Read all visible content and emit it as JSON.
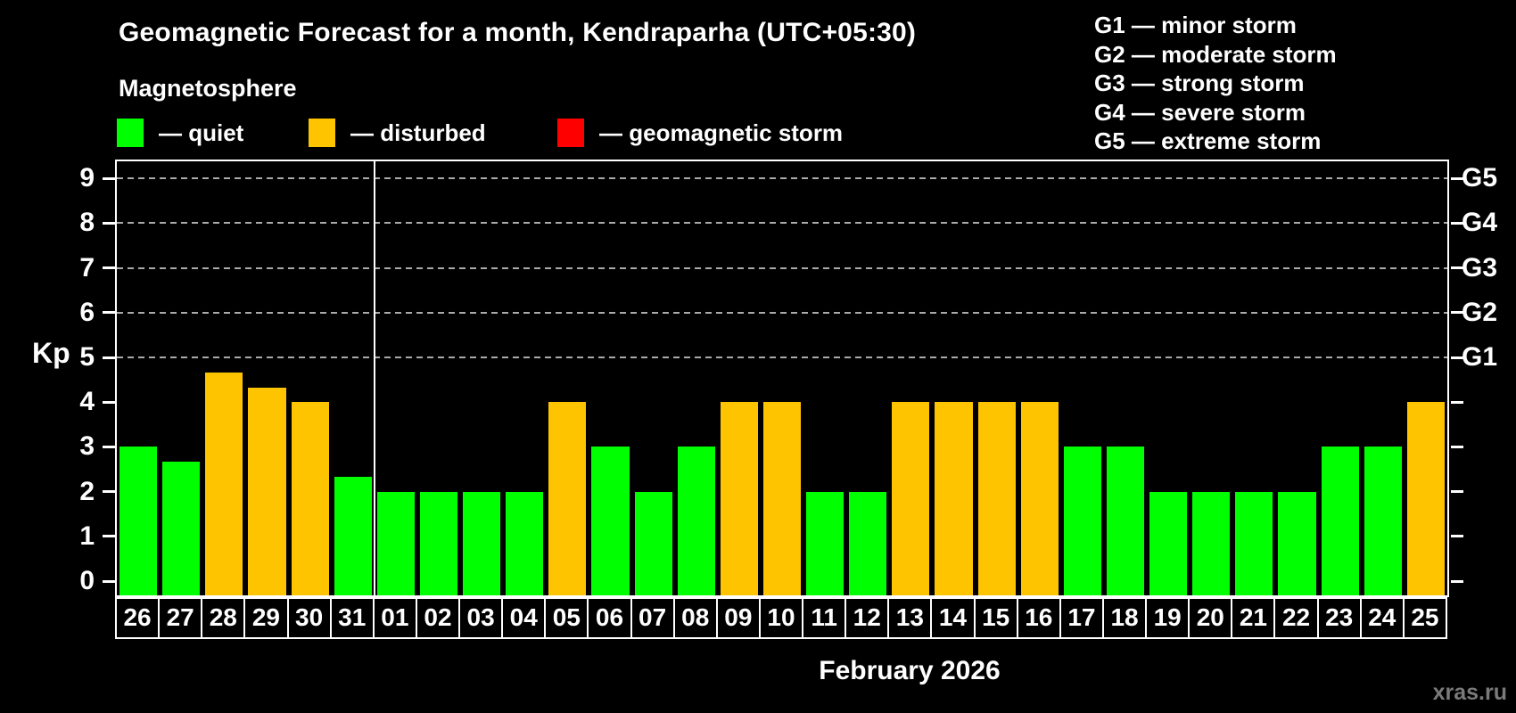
{
  "header": {
    "title": "Geomagnetic Forecast for a month, Kendraparha (UTC+05:30)",
    "subtitle": "Magnetosphere"
  },
  "legend": {
    "items": [
      {
        "name": "quiet",
        "color": "#00ff00",
        "label": "— quiet"
      },
      {
        "name": "disturbed",
        "color": "#ffc400",
        "label": "— disturbed"
      },
      {
        "name": "storm",
        "color": "#ff0000",
        "label": "— geomagnetic storm"
      }
    ]
  },
  "g_legend": {
    "items": [
      "G1 — minor storm",
      "G2 — moderate storm",
      "G3 — strong storm",
      "G4 — severe storm",
      "G5 — extreme storm"
    ]
  },
  "axes": {
    "y_label": "Kp",
    "y_ticks": [
      0,
      1,
      2,
      3,
      4,
      5,
      6,
      7,
      8,
      9
    ],
    "right_labels": [
      {
        "value": 5,
        "label": "G1"
      },
      {
        "value": 6,
        "label": "G2"
      },
      {
        "value": 7,
        "label": "G3"
      },
      {
        "value": 8,
        "label": "G4"
      },
      {
        "value": 9,
        "label": "G5"
      }
    ]
  },
  "footer": {
    "month_label": "February 2026",
    "watermark": "xras.ru"
  },
  "chart_data": {
    "type": "bar",
    "title": "Geomagnetic Forecast for a month, Kendraparha (UTC+05:30)",
    "ylabel": "Kp",
    "xlabel": "February 2026",
    "ylim": [
      0,
      9.4
    ],
    "grid_values": [
      5,
      6,
      7,
      8,
      9
    ],
    "grid_style": "dashed",
    "divider_after_category": "31",
    "status_colors": {
      "quiet": "#00ff00",
      "disturbed": "#ffc400",
      "storm": "#ff0000"
    },
    "categories": [
      "26",
      "27",
      "28",
      "29",
      "30",
      "31",
      "01",
      "02",
      "03",
      "04",
      "05",
      "06",
      "07",
      "08",
      "09",
      "10",
      "11",
      "12",
      "13",
      "14",
      "15",
      "16",
      "17",
      "18",
      "19",
      "20",
      "21",
      "22",
      "23",
      "24",
      "25"
    ],
    "values": [
      3,
      2.67,
      4.67,
      4.33,
      4,
      2.33,
      2,
      2,
      2,
      2,
      4,
      3,
      2,
      3,
      4,
      4,
      2,
      2,
      4,
      4,
      4,
      4,
      3,
      3,
      2,
      2,
      2,
      2,
      3,
      3,
      4
    ],
    "statuses": [
      "quiet",
      "quiet",
      "disturbed",
      "disturbed",
      "disturbed",
      "quiet",
      "quiet",
      "quiet",
      "quiet",
      "quiet",
      "disturbed",
      "quiet",
      "quiet",
      "quiet",
      "disturbed",
      "disturbed",
      "quiet",
      "quiet",
      "disturbed",
      "disturbed",
      "disturbed",
      "disturbed",
      "quiet",
      "quiet",
      "quiet",
      "quiet",
      "quiet",
      "quiet",
      "quiet",
      "quiet",
      "disturbed"
    ]
  }
}
